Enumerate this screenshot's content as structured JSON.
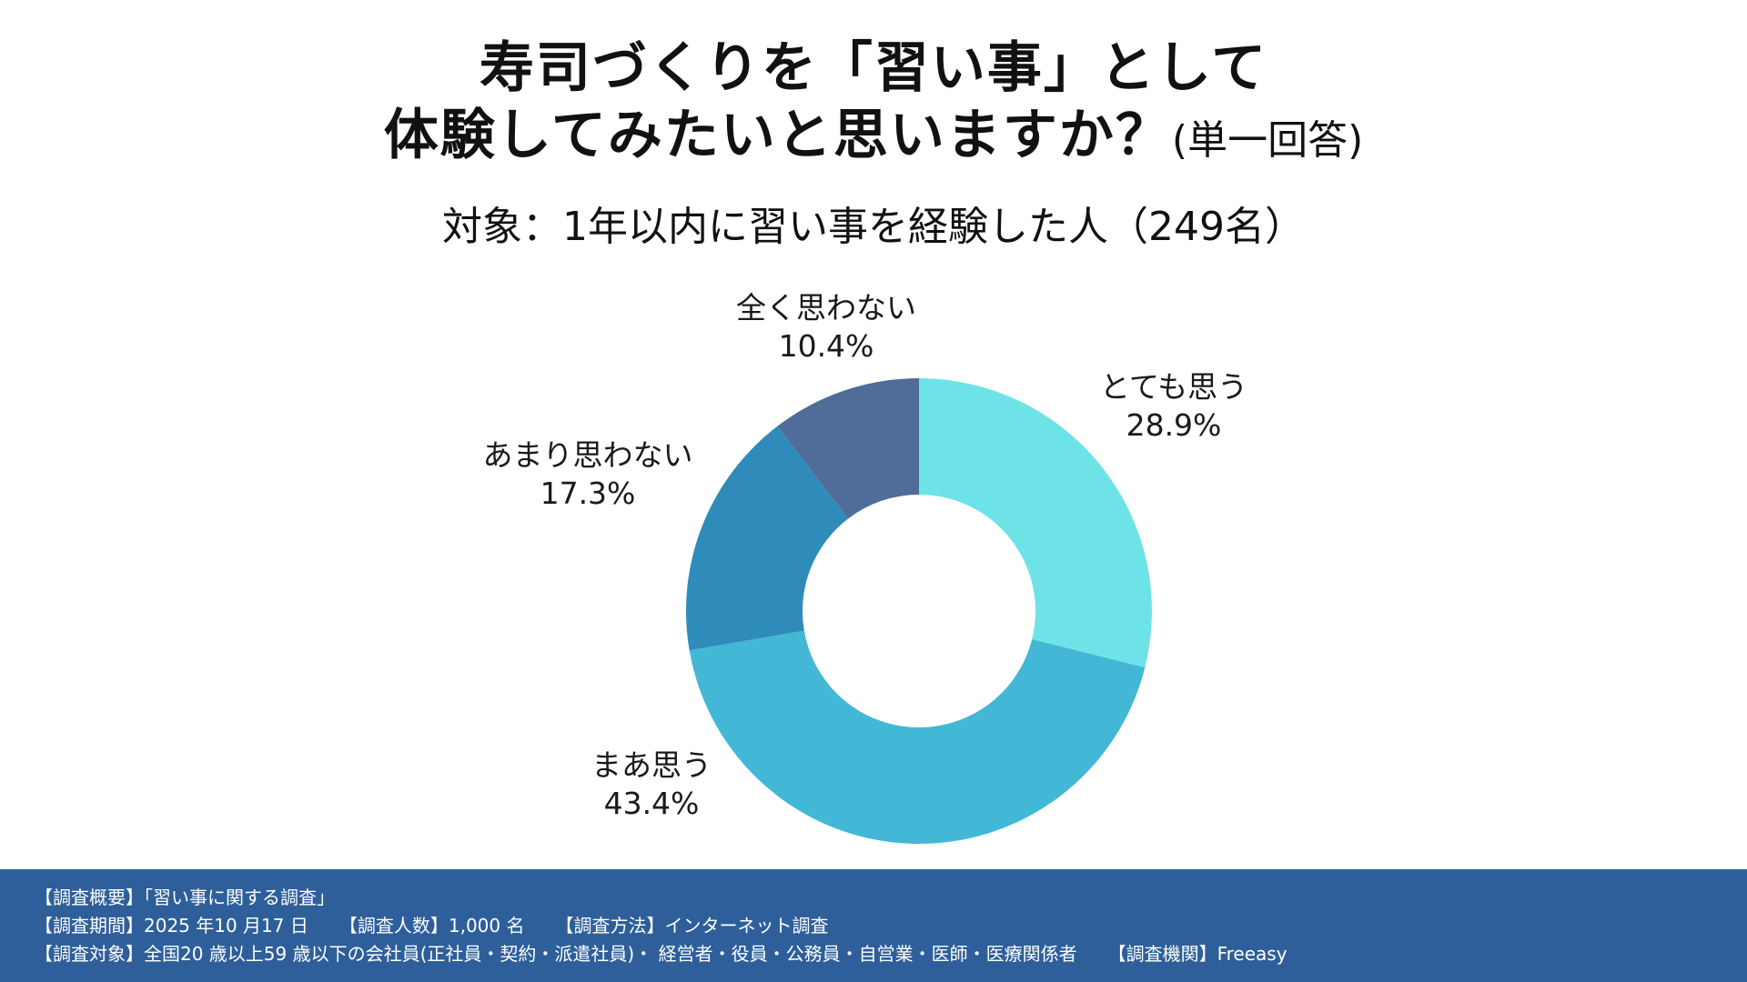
{
  "header": {
    "title_line1": "寿司づくりを「習い事」として",
    "title_line2": "体験してみたいと思いますか？",
    "title_suffix": "(単一回答)",
    "subtitle": "対象：1年以内に習い事を経験した人（249名）"
  },
  "chart_data": {
    "type": "pie",
    "donut": true,
    "title": "寿司づくりを「習い事」として体験してみたいと思いますか？(単一回答)",
    "subtitle": "対象：1年以内に習い事を経験した人（249名）",
    "slices": [
      {
        "label": "とても思う",
        "value": 28.9,
        "value_label": "28.9%",
        "color": "#6de3e8"
      },
      {
        "label": "まあ思う",
        "value": 43.4,
        "value_label": "43.4%",
        "color": "#43b8d6"
      },
      {
        "label": "あまり思わない",
        "value": 17.3,
        "value_label": "17.3%",
        "color": "#2e8bba"
      },
      {
        "label": "全く思わない",
        "value": 10.4,
        "value_label": "10.4%",
        "color": "#506c98"
      }
    ],
    "start": "top",
    "direction": "clockwise"
  },
  "footer": {
    "line1": "【調査概要】「習い事に関する調査」",
    "line2_a": "【調査期間】2025 年10 月17 日",
    "line2_b": "【調査人数】1,000 名",
    "line2_c": "【調査方法】インターネット調査",
    "line3_a": "【調査対象】全国20 歳以上59 歳以下の会社員(正社員・契約・派遣社員)・ 経営者・役員・公務員・自営業・医師・医療関係者",
    "line3_b": "【調査機関】Freeasy",
    "background": "#2e5f9a"
  }
}
